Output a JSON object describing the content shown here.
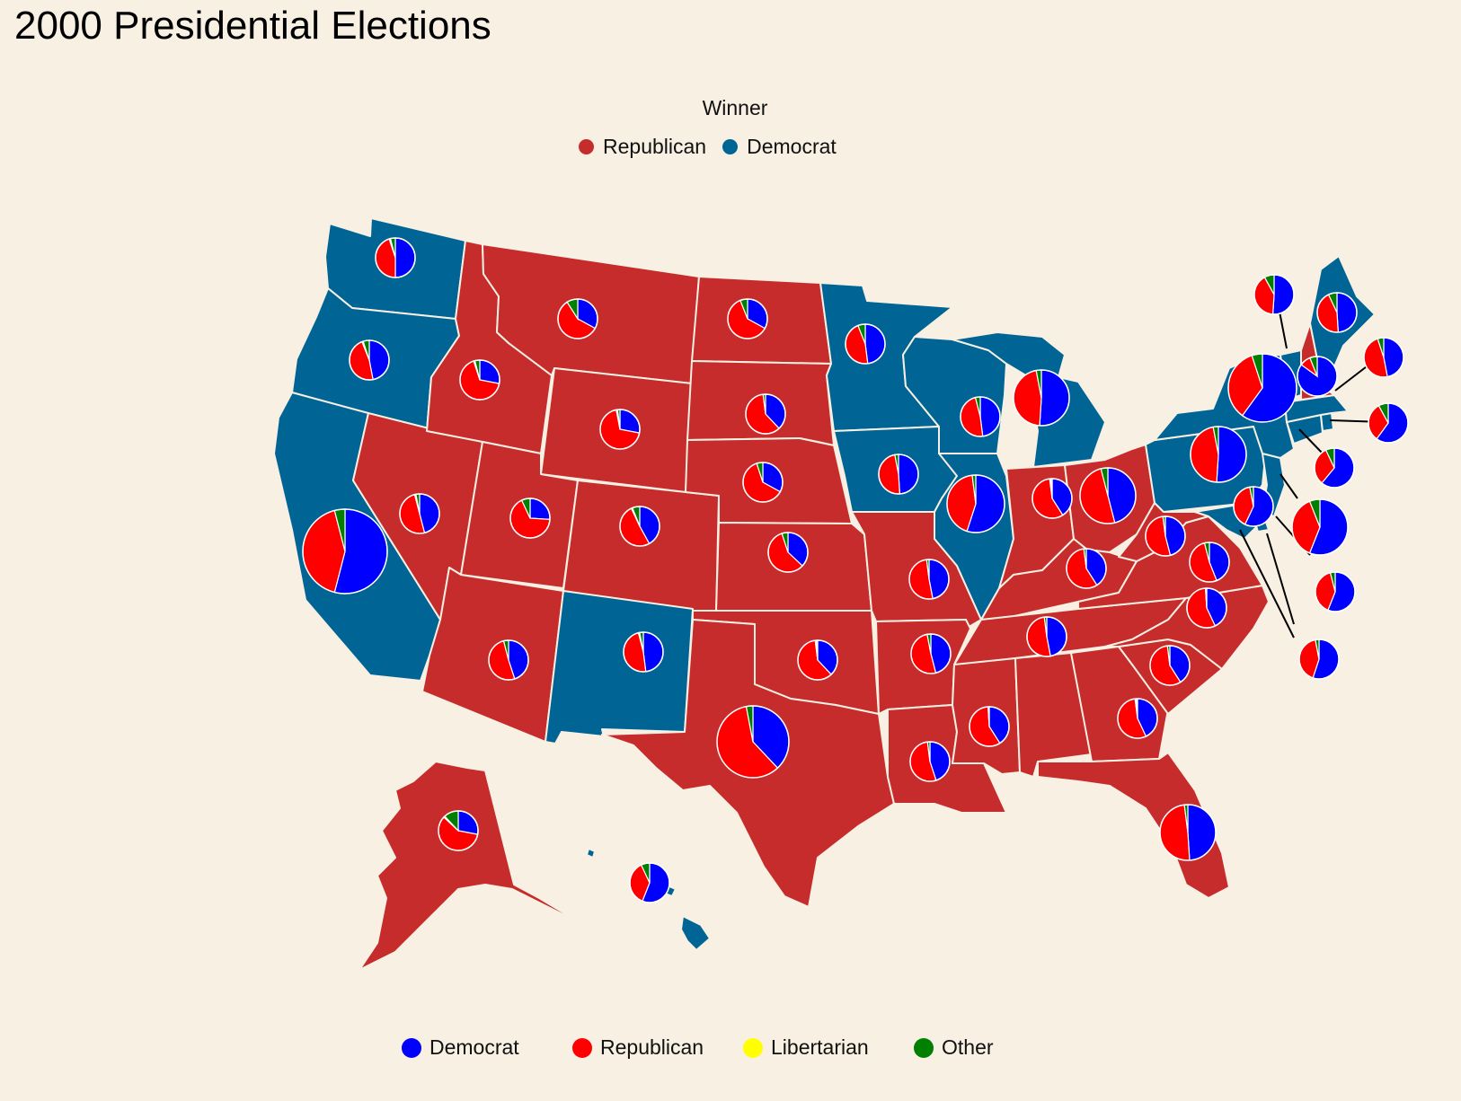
{
  "title": "2000 Presidential Elections",
  "winner_legend": {
    "title": "Winner",
    "items": [
      {
        "label": "Republican",
        "color": "#c72c2c"
      },
      {
        "label": "Democrat",
        "color": "#006495"
      }
    ]
  },
  "party_legend": [
    {
      "label": "Democrat",
      "color": "#0000ff"
    },
    {
      "label": "Republican",
      "color": "#ff0000"
    },
    {
      "label": "Libertarian",
      "color": "#ffff00"
    },
    {
      "label": "Other",
      "color": "#007f00"
    }
  ],
  "chart_data": {
    "type": "choropleth map with pie charts",
    "title": "2000 Presidential Elections",
    "fill_legend_title": "Winner",
    "series": [
      "Democrat",
      "Republican",
      "Libertarian",
      "Other"
    ],
    "states": [
      {
        "state": "WA",
        "winner": "Democrat",
        "shares": [
          0.5,
          0.45,
          0.01,
          0.04
        ]
      },
      {
        "state": "OR",
        "winner": "Democrat",
        "shares": [
          0.47,
          0.47,
          0.01,
          0.05
        ]
      },
      {
        "state": "CA",
        "winner": "Democrat",
        "shares": [
          0.54,
          0.42,
          0.0,
          0.04
        ]
      },
      {
        "state": "NV",
        "winner": "Republican",
        "shares": [
          0.46,
          0.5,
          0.01,
          0.03
        ]
      },
      {
        "state": "ID",
        "winner": "Republican",
        "shares": [
          0.28,
          0.67,
          0.01,
          0.04
        ]
      },
      {
        "state": "MT",
        "winner": "Republican",
        "shares": [
          0.33,
          0.58,
          0.0,
          0.09
        ]
      },
      {
        "state": "WY",
        "winner": "Republican",
        "shares": [
          0.28,
          0.69,
          0.01,
          0.02
        ]
      },
      {
        "state": "UT",
        "winner": "Republican",
        "shares": [
          0.26,
          0.67,
          0.0,
          0.07
        ]
      },
      {
        "state": "AZ",
        "winner": "Republican",
        "shares": [
          0.45,
          0.51,
          0.0,
          0.04
        ]
      },
      {
        "state": "CO",
        "winner": "Republican",
        "shares": [
          0.42,
          0.51,
          0.01,
          0.06
        ]
      },
      {
        "state": "NM",
        "winner": "Democrat",
        "shares": [
          0.48,
          0.48,
          0.01,
          0.03
        ]
      },
      {
        "state": "ND",
        "winner": "Republican",
        "shares": [
          0.33,
          0.61,
          0.0,
          0.06
        ]
      },
      {
        "state": "SD",
        "winner": "Republican",
        "shares": [
          0.38,
          0.6,
          0.0,
          0.02
        ]
      },
      {
        "state": "NE",
        "winner": "Republican",
        "shares": [
          0.33,
          0.62,
          0.0,
          0.05
        ]
      },
      {
        "state": "KS",
        "winner": "Republican",
        "shares": [
          0.37,
          0.58,
          0.0,
          0.05
        ]
      },
      {
        "state": "OK",
        "winner": "Republican",
        "shares": [
          0.38,
          0.6,
          0.01,
          0.01
        ]
      },
      {
        "state": "TX",
        "winner": "Republican",
        "shares": [
          0.38,
          0.59,
          0.0,
          0.03
        ]
      },
      {
        "state": "MN",
        "winner": "Democrat",
        "shares": [
          0.48,
          0.46,
          0.0,
          0.06
        ]
      },
      {
        "state": "IA",
        "winner": "Democrat",
        "shares": [
          0.49,
          0.48,
          0.0,
          0.03
        ]
      },
      {
        "state": "MO",
        "winner": "Republican",
        "shares": [
          0.47,
          0.51,
          0.0,
          0.02
        ]
      },
      {
        "state": "AR",
        "winner": "Republican",
        "shares": [
          0.46,
          0.51,
          0.0,
          0.03
        ]
      },
      {
        "state": "LA",
        "winner": "Republican",
        "shares": [
          0.45,
          0.53,
          0.0,
          0.02
        ]
      },
      {
        "state": "WI",
        "winner": "Democrat",
        "shares": [
          0.48,
          0.48,
          0.0,
          0.04
        ]
      },
      {
        "state": "IL",
        "winner": "Democrat",
        "shares": [
          0.55,
          0.43,
          0.0,
          0.02
        ]
      },
      {
        "state": "MI",
        "winner": "Democrat",
        "shares": [
          0.51,
          0.46,
          0.0,
          0.03
        ]
      },
      {
        "state": "IN",
        "winner": "Republican",
        "shares": [
          0.41,
          0.57,
          0.01,
          0.01
        ]
      },
      {
        "state": "KY",
        "winner": "Republican",
        "shares": [
          0.41,
          0.57,
          0.0,
          0.02
        ]
      },
      {
        "state": "TN",
        "winner": "Republican",
        "shares": [
          0.47,
          0.51,
          0.0,
          0.02
        ]
      },
      {
        "state": "MS",
        "winner": "Republican",
        "shares": [
          0.41,
          0.58,
          0.0,
          0.01
        ]
      },
      {
        "state": "AL",
        "winner": "Republican",
        "shares": [
          0.42,
          0.56,
          0.0,
          0.02
        ]
      },
      {
        "state": "GA",
        "winner": "Republican",
        "shares": [
          0.43,
          0.55,
          0.01,
          0.01
        ]
      },
      {
        "state": "FL",
        "winner": "Republican",
        "shares": [
          0.49,
          0.49,
          0.0,
          0.02
        ]
      },
      {
        "state": "SC",
        "winner": "Republican",
        "shares": [
          0.41,
          0.57,
          0.0,
          0.02
        ]
      },
      {
        "state": "NC",
        "winner": "Republican",
        "shares": [
          0.43,
          0.56,
          0.0,
          0.01
        ]
      },
      {
        "state": "VA",
        "winner": "Republican",
        "shares": [
          0.44,
          0.52,
          0.0,
          0.04
        ]
      },
      {
        "state": "WV",
        "winner": "Republican",
        "shares": [
          0.46,
          0.52,
          0.0,
          0.02
        ]
      },
      {
        "state": "OH",
        "winner": "Republican",
        "shares": [
          0.46,
          0.5,
          0.0,
          0.04
        ]
      },
      {
        "state": "PA",
        "winner": "Democrat",
        "shares": [
          0.51,
          0.46,
          0.0,
          0.03
        ]
      },
      {
        "state": "NY",
        "winner": "Democrat",
        "shares": [
          0.6,
          0.35,
          0.0,
          0.05
        ]
      },
      {
        "state": "VT",
        "winner": "Democrat",
        "shares": [
          0.51,
          0.41,
          0.0,
          0.08
        ]
      },
      {
        "state": "NH",
        "winner": "Republican",
        "shares": [
          0.47,
          0.48,
          0.0,
          0.05
        ]
      },
      {
        "state": "ME",
        "winner": "Democrat",
        "shares": [
          0.49,
          0.44,
          0.0,
          0.07
        ]
      },
      {
        "state": "MA",
        "winner": "Democrat",
        "shares": [
          0.6,
          0.32,
          0.0,
          0.08
        ]
      },
      {
        "state": "RI",
        "winner": "Democrat",
        "shares": [
          0.61,
          0.32,
          0.0,
          0.07
        ]
      },
      {
        "state": "CT",
        "winner": "Democrat",
        "shares": [
          0.56,
          0.38,
          0.0,
          0.06
        ]
      },
      {
        "state": "NJ",
        "winner": "Democrat",
        "shares": [
          0.56,
          0.4,
          0.0,
          0.04
        ]
      },
      {
        "state": "DE",
        "winner": "Democrat",
        "shares": [
          0.55,
          0.42,
          0.0,
          0.03
        ]
      },
      {
        "state": "MD",
        "winner": "Democrat",
        "shares": [
          0.57,
          0.4,
          0.0,
          0.03
        ]
      },
      {
        "state": "DC",
        "winner": "Democrat",
        "shares": [
          0.85,
          0.09,
          0.0,
          0.06
        ]
      },
      {
        "state": "AK",
        "winner": "Republican",
        "shares": [
          0.28,
          0.59,
          0.01,
          0.12
        ]
      },
      {
        "state": "HI",
        "winner": "Democrat",
        "shares": [
          0.56,
          0.37,
          0.0,
          0.07
        ]
      }
    ]
  }
}
